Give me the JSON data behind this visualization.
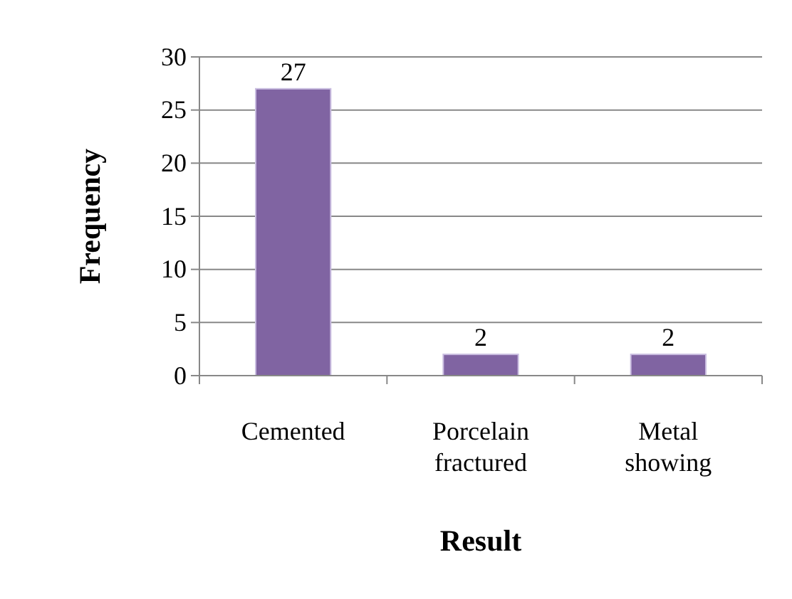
{
  "chart_data": {
    "type": "bar",
    "xlabel": "Result",
    "ylabel": "Frequency",
    "categories": [
      "Cemented",
      "Porcelain fractured",
      "Metal showing"
    ],
    "values": [
      27,
      2,
      2
    ],
    "color": "#8064a2",
    "ylim": [
      0,
      30
    ],
    "yticks": [
      0,
      5,
      10,
      15,
      20,
      25,
      30
    ],
    "grid": "y",
    "data_labels": true
  }
}
